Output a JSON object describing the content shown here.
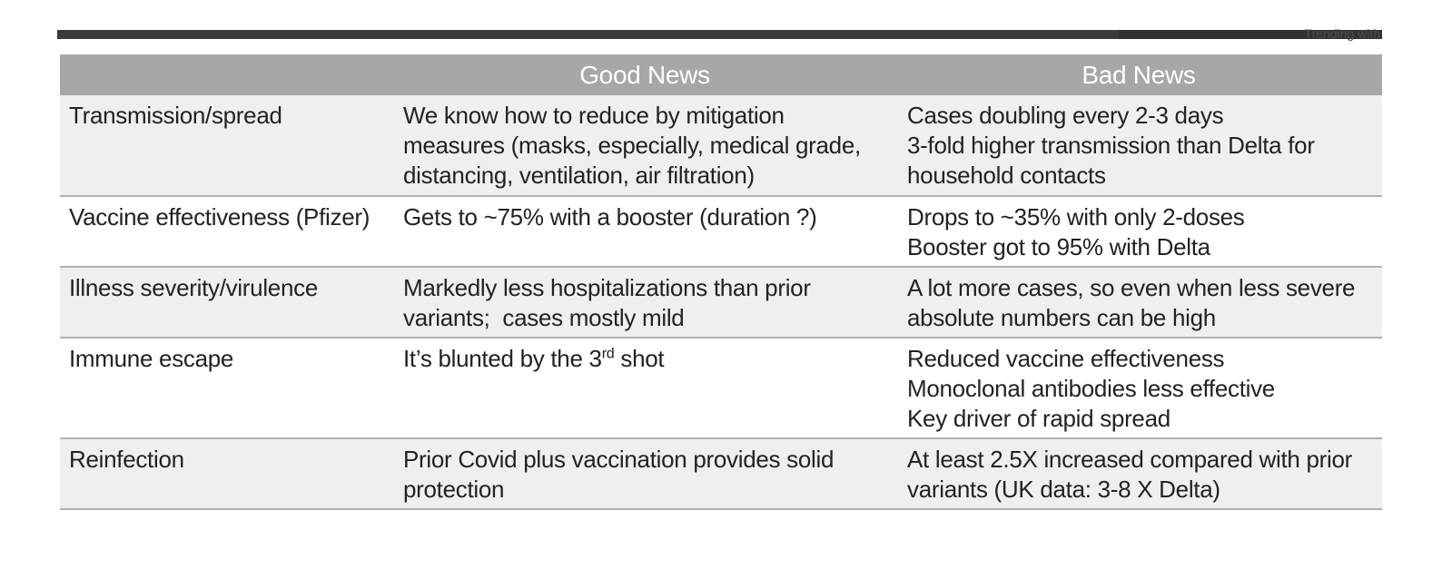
{
  "browser_strip": {
    "trending_text": "Trending with"
  },
  "table": {
    "header": {
      "topic_label": "",
      "good_label": "Good News",
      "bad_label": "Bad News"
    },
    "rows": [
      {
        "topic": "Transmission/spread",
        "good": [
          "We know how to reduce by mitigation measures (masks, especially, medical grade, distancing, ventilation, air filtration)"
        ],
        "bad": [
          "Cases doubling every 2-3 days",
          "3-fold higher transmission than Delta for household contacts"
        ]
      },
      {
        "topic": "Vaccine effectiveness (Pfizer)",
        "good": [
          "Gets to ~75% with a booster (duration ?)"
        ],
        "bad": [
          "Drops to ~35% with only 2-doses",
          "Booster got to 95% with Delta"
        ]
      },
      {
        "topic": "Illness severity/virulence",
        "good": [
          "Markedly less hospitalizations than prior variants;  cases mostly mild"
        ],
        "bad": [
          "A lot more cases, so even when less severe absolute numbers can be high"
        ]
      },
      {
        "topic": "Immune escape",
        "good": [
          "It’s blunted by the 3rd shot"
        ],
        "bad": [
          "Reduced vaccine effectiveness",
          "Monoclonal antibodies less effective",
          "Key driver of rapid spread"
        ]
      },
      {
        "topic": "Reinfection",
        "good": [
          "Prior Covid plus vaccination provides solid protection"
        ],
        "bad": [
          "At least 2.5X increased compared with prior variants (UK data: 3-8 X Delta)"
        ]
      }
    ]
  },
  "colors": {
    "header_bg": "#a7a7a7",
    "header_text": "#ffffff",
    "row_alt_bg": "#efefee",
    "row_bg": "#ffffff",
    "divider": "#b0b0b0",
    "body_text": "#222222",
    "strip_bg": "#3b3b3b",
    "strip_bg_dark": "#323232",
    "strip_text": "#4f4f4f"
  }
}
